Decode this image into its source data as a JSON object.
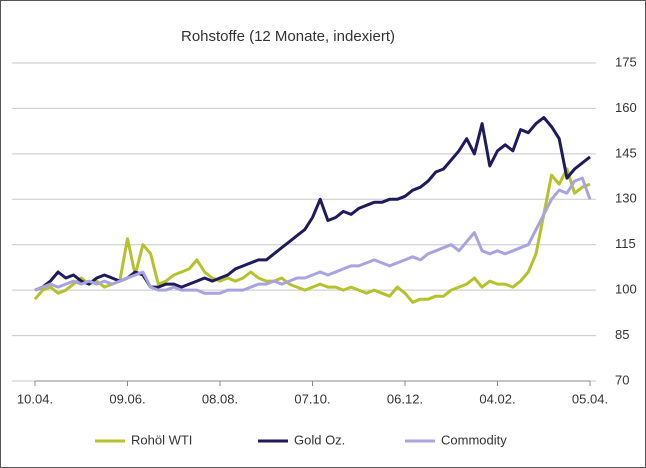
{
  "chart_data": {
    "type": "line",
    "title": "Rohstoffe (12 Monate, indexiert)",
    "categories": [
      "10.04.",
      null,
      null,
      null,
      null,
      null,
      null,
      null,
      null,
      null,
      null,
      null,
      "09.06.",
      null,
      null,
      null,
      null,
      null,
      null,
      null,
      null,
      null,
      null,
      null,
      "08.08.",
      null,
      null,
      null,
      null,
      null,
      null,
      null,
      null,
      null,
      null,
      null,
      "07.10.",
      null,
      null,
      null,
      null,
      null,
      null,
      null,
      null,
      null,
      null,
      null,
      "06.12.",
      null,
      null,
      null,
      null,
      null,
      null,
      null,
      null,
      null,
      null,
      null,
      "04.02.",
      null,
      null,
      null,
      null,
      null,
      null,
      null,
      null,
      null,
      null,
      null,
      "05.04."
    ],
    "series": [
      {
        "name": "Rohöl WTI",
        "color": "#b5c22b",
        "values": [
          97,
          100,
          101,
          99,
          100,
          102,
          104,
          102,
          103,
          101,
          102,
          103,
          117,
          105,
          115,
          112,
          102,
          103,
          105,
          106,
          107,
          110,
          106,
          104,
          103,
          104,
          103,
          104,
          106,
          104,
          103,
          103,
          104,
          102,
          101,
          100,
          101,
          102,
          101,
          101,
          100,
          101,
          100,
          99,
          100,
          99,
          98,
          101,
          99,
          96,
          97,
          97,
          98,
          98,
          100,
          101,
          102,
          104,
          101,
          103,
          102,
          102,
          101,
          103,
          106,
          112,
          125,
          138,
          135,
          140,
          132,
          134,
          135
        ]
      },
      {
        "name": "Gold Oz.",
        "color": "#1f1a5e",
        "values": [
          100,
          101,
          103,
          106,
          104,
          105,
          103,
          102,
          104,
          105,
          104,
          103,
          104,
          106,
          105,
          101,
          101,
          102,
          102,
          101,
          102,
          103,
          104,
          103,
          104,
          105,
          107,
          108,
          109,
          110,
          110,
          112,
          114,
          116,
          118,
          120,
          124,
          130,
          123,
          124,
          126,
          125,
          127,
          128,
          129,
          129,
          130,
          130,
          131,
          133,
          134,
          136,
          139,
          140,
          143,
          146,
          150,
          145,
          155,
          141,
          146,
          148,
          146,
          153,
          152,
          155,
          157,
          154,
          150,
          137,
          140,
          142,
          144
        ]
      },
      {
        "name": "Commodity",
        "color": "#a9a4e0",
        "values": [
          100,
          101,
          102,
          101,
          102,
          103,
          102,
          103,
          102,
          103,
          102,
          103,
          104,
          105,
          106,
          101,
          100,
          100,
          101,
          100,
          100,
          100,
          99,
          99,
          99,
          100,
          100,
          100,
          101,
          102,
          102,
          103,
          102,
          103,
          104,
          104,
          105,
          106,
          105,
          106,
          107,
          108,
          108,
          109,
          110,
          109,
          108,
          109,
          110,
          111,
          110,
          112,
          113,
          114,
          115,
          113,
          116,
          119,
          113,
          112,
          113,
          112,
          113,
          114,
          115,
          120,
          125,
          130,
          133,
          132,
          136,
          137,
          130
        ]
      }
    ],
    "ylim": [
      70,
      175
    ],
    "yticks": [
      70,
      85,
      100,
      115,
      130,
      145,
      160,
      175
    ],
    "grid": true,
    "legend": "bottom"
  }
}
